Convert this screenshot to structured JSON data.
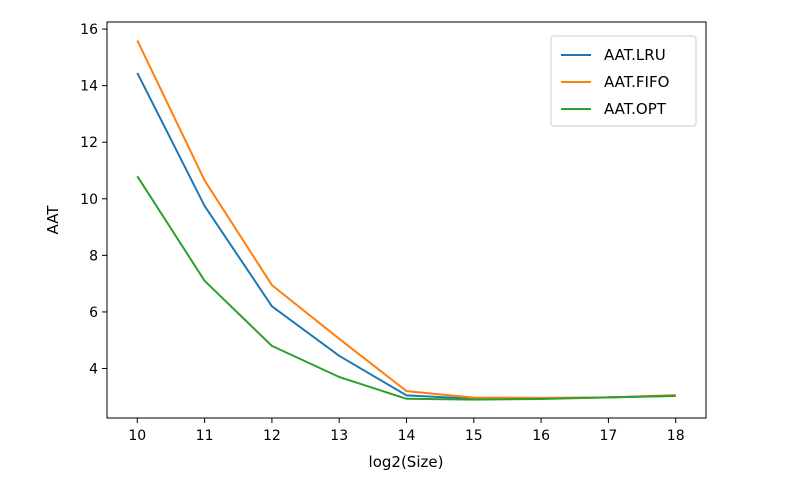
{
  "chart_data": {
    "type": "line",
    "xlabel": "log2(Size)",
    "ylabel": "AAT",
    "x": [
      10,
      11,
      12,
      13,
      14,
      15,
      16,
      17,
      18
    ],
    "xlim": [
      9.55,
      18.45
    ],
    "ylim": [
      2.25,
      16.25
    ],
    "xticks": [
      10,
      11,
      12,
      13,
      14,
      15,
      16,
      17,
      18
    ],
    "yticks": [
      4,
      6,
      8,
      10,
      12,
      14,
      16
    ],
    "grid": false,
    "legend_position": "top-right",
    "series": [
      {
        "name": "AAT.LRU",
        "color": "#1f77b4",
        "values": [
          14.45,
          9.75,
          6.2,
          4.45,
          3.05,
          2.93,
          2.95,
          2.98,
          3.03
        ]
      },
      {
        "name": "AAT.FIFO",
        "color": "#ff7f0e",
        "values": [
          15.6,
          10.65,
          6.95,
          5.05,
          3.2,
          2.97,
          2.96,
          2.98,
          3.06
        ]
      },
      {
        "name": "AAT.OPT",
        "color": "#2ca02c",
        "values": [
          10.8,
          7.1,
          4.8,
          3.7,
          2.93,
          2.9,
          2.92,
          2.98,
          3.03
        ]
      }
    ]
  }
}
